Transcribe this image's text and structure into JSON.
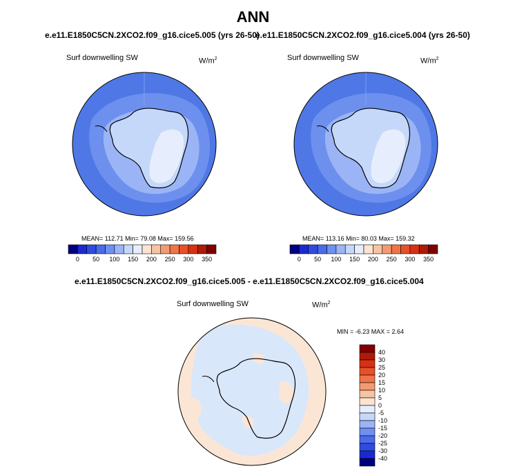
{
  "main_title": "ANN",
  "panels": {
    "top_left": {
      "case": "e.e11.E1850C5CN.2XCO2.f09_g16.cice5.005 (yrs 26-50)",
      "variable": "Surf downwelling SW",
      "units": "W/m",
      "units_sup": "2",
      "stats": "MEAN= 112.71  Min=  79.08  Max= 159.56"
    },
    "top_right": {
      "case": "e.e11.E1850C5CN.2XCO2.f09_g16.cice5.004 (yrs 26-50)",
      "variable": "Surf downwelling SW",
      "units": "W/m",
      "units_sup": "2",
      "stats": "MEAN= 113.16  Min=  80.03  Max= 159.32"
    },
    "diff": {
      "case": "e.e11.E1850C5CN.2XCO2.f09_g16.cice5.005 - e.e11.E1850C5CN.2XCO2.f09_g16.cice5.004",
      "variable": "Surf downwelling SW",
      "units": "W/m",
      "units_sup": "2",
      "stats": "MIN =  -6.23 MAX =   2.64"
    }
  },
  "colorbar_abs": {
    "ticks": [
      "0",
      "50",
      "100",
      "150",
      "200",
      "250",
      "300",
      "350"
    ],
    "colors": [
      "#00007f",
      "#1a2ad0",
      "#2f4ce0",
      "#4a6bea",
      "#6f90f0",
      "#9ab4f6",
      "#c6d8fa",
      "#e6eefd",
      "#fde4d2",
      "#f8c3a2",
      "#f49a72",
      "#ef7448",
      "#e85028",
      "#d83012",
      "#b01a06",
      "#7f0000"
    ]
  },
  "colorbar_diff": {
    "ticks": [
      "40",
      "30",
      "25",
      "20",
      "15",
      "10",
      "5",
      "0",
      "-5",
      "-10",
      "-15",
      "-20",
      "-25",
      "-30",
      "-40"
    ],
    "colors": [
      "#7f0000",
      "#b01a06",
      "#d83012",
      "#e85028",
      "#ef7448",
      "#f49a72",
      "#f8c3a2",
      "#fde4d2",
      "#e6eefd",
      "#c6d8fa",
      "#9ab4f6",
      "#6f90f0",
      "#4a6bea",
      "#2f4ce0",
      "#1a2ad0",
      "#00007f"
    ]
  },
  "map_colors": {
    "ocean_outer": "#4f78e6",
    "ocean_mid": "#6d90ee",
    "ocean_inner": "#9ab4f6",
    "land_light": "#c6d8fa",
    "land_lightest": "#e6eefd",
    "diff_base": "#fbe6d5",
    "diff_neg": "#d9e7fb"
  }
}
